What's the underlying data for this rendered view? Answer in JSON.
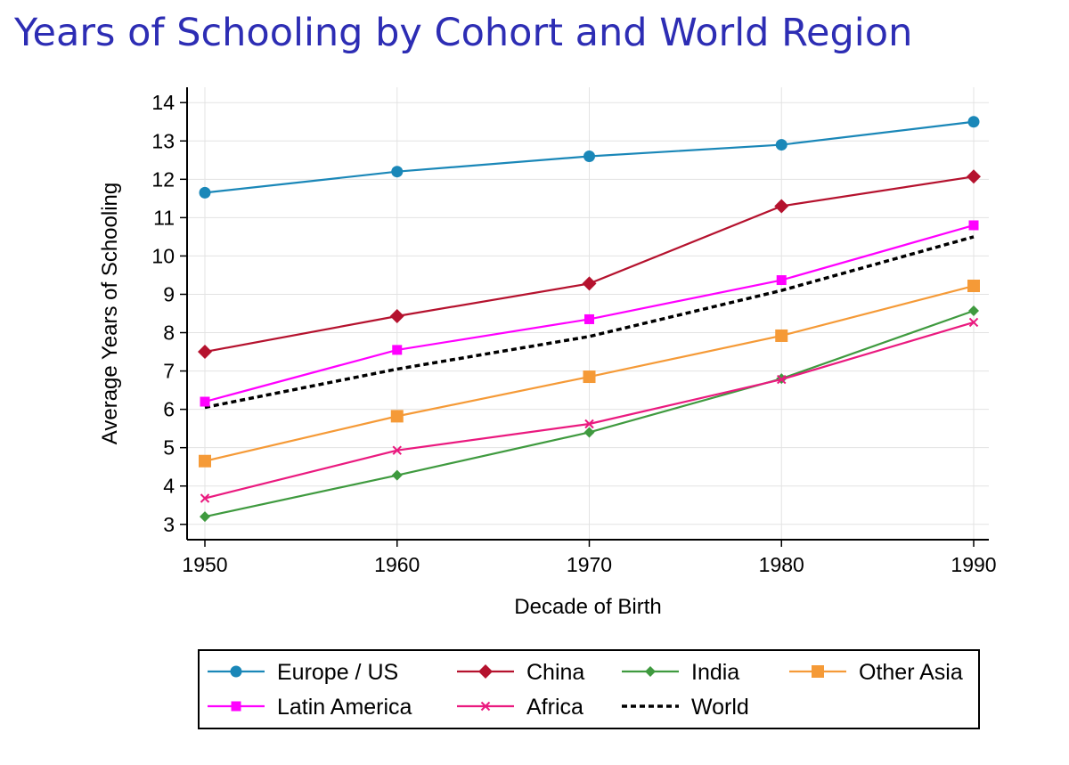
{
  "title": "Years of Schooling by Cohort and World Region",
  "chart_data": {
    "type": "line",
    "xlabel": "Decade of Birth",
    "ylabel": "Average Years of Schooling",
    "x": [
      1950,
      1960,
      1970,
      1980,
      1990
    ],
    "x_ticks": [
      "1950",
      "1960",
      "1970",
      "1980",
      "1990"
    ],
    "y_ticks": [
      3,
      4,
      5,
      6,
      7,
      8,
      9,
      10,
      11,
      12,
      13,
      14
    ],
    "ylim": [
      2.6,
      14.4
    ],
    "grid": true,
    "legend_position": "bottom",
    "series": [
      {
        "name": "Europe / US",
        "values": [
          11.65,
          12.2,
          12.6,
          12.9,
          13.5
        ],
        "color": "#1a87b8",
        "marker": "circle",
        "dash": false
      },
      {
        "name": "China",
        "values": [
          7.5,
          8.43,
          9.28,
          11.3,
          12.07
        ],
        "color": "#b5122e",
        "marker": "diamond",
        "dash": false
      },
      {
        "name": "India",
        "values": [
          3.2,
          4.28,
          5.4,
          6.8,
          8.57
        ],
        "color": "#3f9a3f",
        "marker": "small-diamond",
        "dash": false
      },
      {
        "name": "Other Asia",
        "values": [
          4.65,
          5.82,
          6.85,
          7.92,
          9.22
        ],
        "color": "#f59a37",
        "marker": "square",
        "dash": false
      },
      {
        "name": "Latin America",
        "values": [
          6.2,
          7.55,
          8.35,
          9.37,
          10.8
        ],
        "color": "#ff00ff",
        "marker": "small-square",
        "dash": false
      },
      {
        "name": "Africa",
        "values": [
          3.68,
          4.93,
          5.62,
          6.78,
          8.27
        ],
        "color": "#ea1a7f",
        "marker": "x",
        "dash": false
      },
      {
        "name": "World",
        "values": [
          6.05,
          7.05,
          7.9,
          9.1,
          10.5
        ],
        "color": "#000000",
        "marker": "none",
        "dash": true
      }
    ],
    "legend_order": [
      "Europe / US",
      "China",
      "India",
      "Other Asia",
      "Latin America",
      "Africa",
      "World"
    ]
  }
}
